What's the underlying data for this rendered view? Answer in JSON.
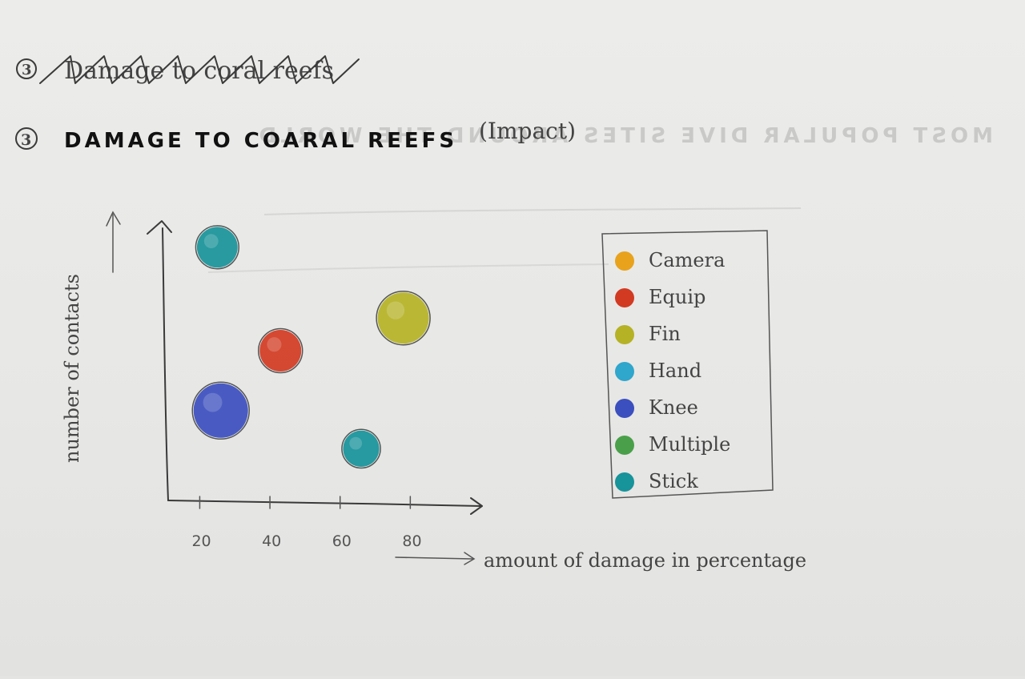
{
  "heading": {
    "number": "3",
    "struck_title": "Damage to coral reefs",
    "title": "DAMAGE TO COARAL REEFS",
    "note": "(Impact)",
    "bleed_through": "MOST POPULAR DIVE SITES AROUND THE WORLD"
  },
  "chart_data": {
    "type": "scatter",
    "title": "DAMAGE TO COARAL REEFS",
    "xlabel": "amount of damage in percentage",
    "ylabel": "number of contacts",
    "x_ticks": [
      "20",
      "40",
      "60",
      "80"
    ],
    "x_tick_values": [
      20,
      40,
      60,
      80
    ],
    "xlim": [
      11,
      100
    ],
    "ylim": [
      0,
      10
    ],
    "grid": false,
    "legend_position": "right",
    "series": [
      {
        "name": "Camera",
        "color": "#e8a21c",
        "points": []
      },
      {
        "name": "Equip",
        "color": "#d23a22",
        "points": [
          {
            "x": 43,
            "y": 5.5,
            "size": 0.55
          }
        ]
      },
      {
        "name": "Fin",
        "color": "#b5b226",
        "points": [
          {
            "x": 78,
            "y": 6.7,
            "size": 0.85
          }
        ]
      },
      {
        "name": "Hand",
        "color": "#2fa6cc",
        "points": []
      },
      {
        "name": "Knee",
        "color": "#3c4fbf",
        "points": [
          {
            "x": 26,
            "y": 3.3,
            "size": 0.95
          }
        ]
      },
      {
        "name": "Multiple",
        "color": "#4aa04a",
        "points": []
      },
      {
        "name": "Stick",
        "color": "#17939a",
        "points": [
          {
            "x": 25,
            "y": 9.3,
            "size": 0.52
          },
          {
            "x": 66,
            "y": 1.9,
            "size": 0.38
          }
        ]
      }
    ]
  }
}
